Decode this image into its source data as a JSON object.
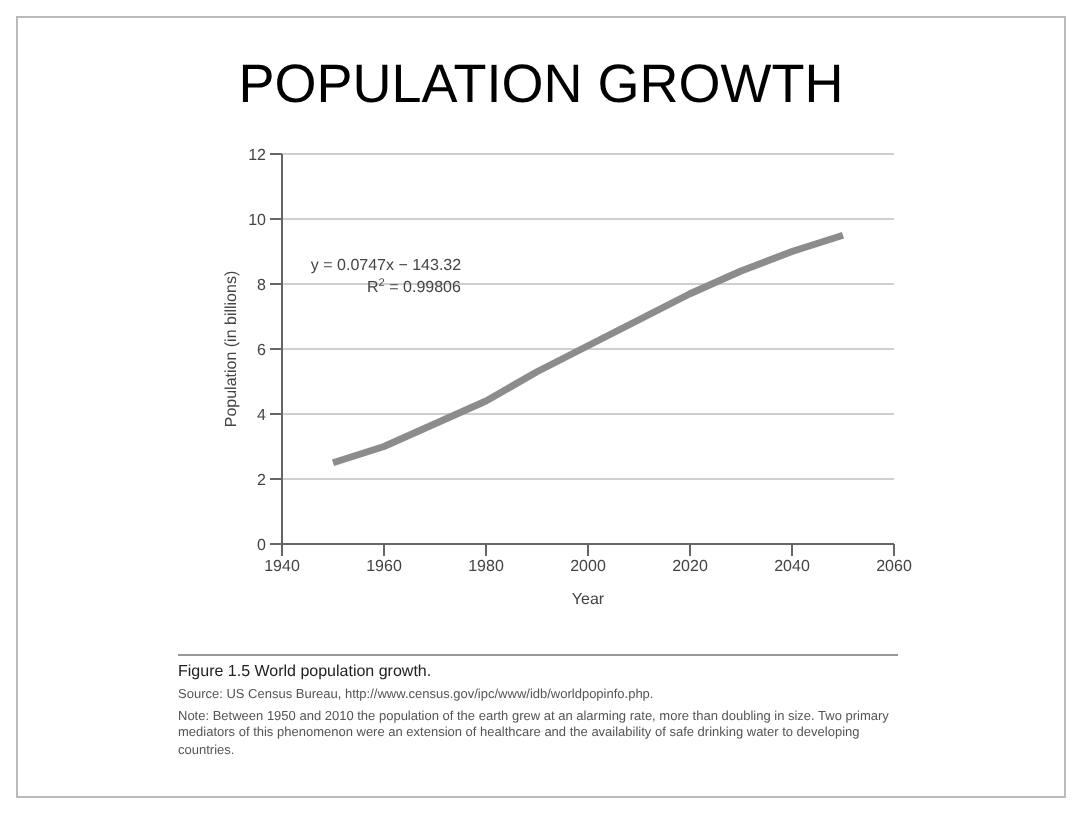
{
  "chart_data": {
    "type": "line",
    "title": "POPULATION GROWTH",
    "xlabel": "Year",
    "ylabel": "Population (in billions)",
    "x": [
      1950,
      1960,
      1970,
      1980,
      1990,
      2000,
      2010,
      2020,
      2030,
      2040,
      2050
    ],
    "series": [
      {
        "color": "#8c8c8c",
        "values": [
          2.5,
          3.0,
          3.7,
          4.4,
          5.3,
          6.1,
          6.9,
          7.7,
          8.4,
          9.0,
          9.5
        ]
      }
    ],
    "xlim": [
      1940,
      2060
    ],
    "xticks": [
      1940,
      1960,
      1980,
      2000,
      2020,
      2040,
      2060
    ],
    "ylim": [
      0,
      12
    ],
    "yticks": [
      0,
      2,
      4,
      6,
      8,
      10,
      12
    ],
    "grid": "y",
    "marker": "none",
    "line_style": "solid",
    "annotations": [
      "y = 0.0747x − 143.32",
      "R$^{2}$ = 0.99806",
      "Figure 1.5   World population growth.",
      "Source: US Census Bureau, http://www.census.gov/ipc/www/idb/worldpopinfo.php.",
      "Note: Between 1950 and 2010 the population of the earth grew at an alarming rate, more than doubling in size. Two primary mediators of this phenomenon were an extension of healthcare and the availability of safe drinking water to developing countries."
    ]
  }
}
